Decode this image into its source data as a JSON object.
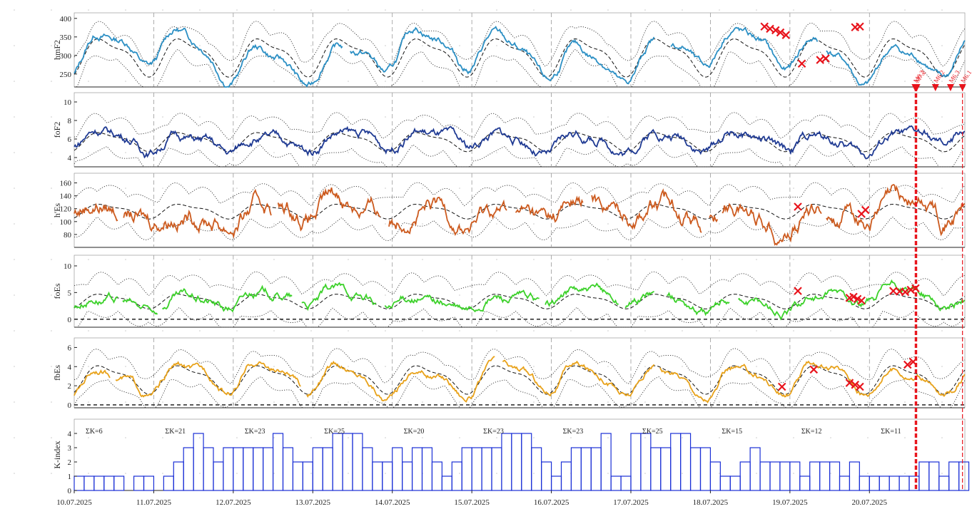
{
  "chart_data": {
    "type": "line",
    "x_dates": [
      "10.07.2025",
      "11.07.2025",
      "12.07.2025",
      "13.07.2025",
      "14.07.2025",
      "15.07.2025",
      "16.07.2025",
      "17.07.2025",
      "18.07.2025",
      "19.07.2025",
      "20.07.2025"
    ],
    "x_range_days": [
      0,
      11.2
    ],
    "colors": {
      "hmF2": "#2b8fc4",
      "foF2": "#1f3a93",
      "hEs": "#cc5a1e",
      "foEs": "#3cd12a",
      "fbEs": "#e8a21a",
      "kindex": "#1a2fd6",
      "event": "#e8141c",
      "median": "#111111",
      "bounds": "#333333"
    },
    "panels": [
      {
        "ylabel": "hmF2",
        "ylim": [
          215,
          415
        ],
        "yticks": [
          250,
          300,
          350,
          400
        ],
        "base": 300,
        "amp": 45,
        "noise": 6,
        "env": 30,
        "spread": 40,
        "gaps": [
          [
            3.38,
            3.47
          ],
          [
            7.3,
            7.5
          ],
          [
            9.35,
            9.45
          ]
        ],
        "x_points": [
          [
            8.68,
            378
          ],
          [
            8.75,
            372
          ],
          [
            8.82,
            368
          ],
          [
            8.88,
            362
          ],
          [
            8.95,
            355
          ],
          [
            9.15,
            278
          ],
          [
            9.38,
            288
          ],
          [
            9.45,
            292
          ],
          [
            9.82,
            376
          ],
          [
            9.88,
            378
          ]
        ]
      },
      {
        "ylabel": "foF2",
        "ylim": [
          3,
          11
        ],
        "yticks": [
          4,
          6,
          8,
          10
        ],
        "base": 5.8,
        "amp": 0.9,
        "noise": 0.3,
        "env": 0.4,
        "spread": 1.8,
        "gaps": [],
        "x_points": []
      },
      {
        "ylabel": "h'Es",
        "ylim": [
          60,
          175
        ],
        "yticks": [
          80,
          100,
          120,
          140,
          160
        ],
        "base": 117,
        "amp": 10,
        "noise": 8,
        "env": 8,
        "spread": 28,
        "gaps": [
          [
            0.55,
            0.62
          ],
          [
            2.48,
            2.56
          ],
          [
            3.85,
            3.95
          ],
          [
            5.45,
            5.55
          ],
          [
            6.4,
            6.5
          ],
          [
            7.9,
            7.98
          ],
          [
            8.1,
            8.15
          ],
          [
            9.4,
            9.45
          ]
        ],
        "x_points": [
          [
            9.1,
            123
          ],
          [
            9.9,
            112
          ],
          [
            9.95,
            118
          ]
        ]
      },
      {
        "ylabel": "foEs",
        "ylim": [
          -1.5,
          12
        ],
        "yticks": [
          0,
          5,
          10
        ],
        "base": 3.5,
        "amp": 1.2,
        "noise": 0.5,
        "env": 0.8,
        "spread": 3.5,
        "gaps": [
          [
            0.55,
            0.6
          ],
          [
            1.05,
            1.1
          ],
          [
            2.75,
            2.85
          ],
          [
            3.8,
            3.9
          ],
          [
            5.85,
            5.92
          ],
          [
            6.85,
            6.92
          ],
          [
            7.3,
            7.45
          ],
          [
            8.25,
            8.35
          ]
        ],
        "x_points": [
          [
            9.1,
            5.3
          ],
          [
            9.75,
            4.0
          ],
          [
            9.8,
            4.2
          ],
          [
            9.85,
            3.8
          ],
          [
            9.9,
            3.5
          ],
          [
            10.3,
            5.3
          ],
          [
            10.38,
            5.2
          ],
          [
            10.45,
            5.1
          ],
          [
            10.52,
            5.5
          ],
          [
            10.58,
            5.8
          ]
        ]
      },
      {
        "ylabel": "fbEs",
        "ylim": [
          -0.3,
          7
        ],
        "yticks": [
          0,
          2,
          4,
          6
        ],
        "base": 2.8,
        "amp": 1.3,
        "noise": 0.2,
        "env": 0.3,
        "spread": 1.5,
        "gaps": [
          [
            0.45,
            0.52
          ],
          [
            2.85,
            2.92
          ],
          [
            5.3,
            5.38
          ],
          [
            7.3,
            7.36
          ]
        ],
        "x_points": [
          [
            8.9,
            1.9
          ],
          [
            9.3,
            3.7
          ],
          [
            9.75,
            2.3
          ],
          [
            9.82,
            2.1
          ],
          [
            9.88,
            1.9
          ],
          [
            10.48,
            4.2
          ],
          [
            10.55,
            4.5
          ]
        ]
      }
    ],
    "kindex": {
      "ylabel": "K-index",
      "ylim": [
        0,
        5
      ],
      "yticks": [
        0,
        1,
        2,
        3,
        4
      ],
      "values": [
        1,
        1,
        1,
        1,
        1,
        0,
        1,
        1,
        0,
        1,
        2,
        3,
        4,
        3,
        2,
        3,
        3,
        3,
        3,
        3,
        4,
        3,
        2,
        2,
        3,
        3,
        4,
        4,
        4,
        3,
        2,
        2,
        3,
        2,
        3,
        3,
        2,
        1,
        2,
        3,
        3,
        3,
        3,
        4,
        4,
        4,
        3,
        2,
        1,
        2,
        3,
        3,
        3,
        4,
        1,
        1,
        4,
        4,
        3,
        3,
        4,
        4,
        3,
        3,
        2,
        1,
        1,
        2,
        3,
        2,
        2,
        2,
        2,
        1,
        2,
        2,
        2,
        1,
        2,
        1,
        1,
        1,
        1,
        1,
        1,
        2,
        2,
        1,
        2,
        2
      ],
      "sums": [
        {
          "day": 0,
          "label": "ΣK=6"
        },
        {
          "day": 1,
          "label": "ΣK=21"
        },
        {
          "day": 2,
          "label": "ΣK=23"
        },
        {
          "day": 3,
          "label": "ΣK=25"
        },
        {
          "day": 4,
          "label": "ΣK=20"
        },
        {
          "day": 5,
          "label": "ΣK=23"
        },
        {
          "day": 6,
          "label": "ΣK=23"
        },
        {
          "day": 7,
          "label": "ΣK=25"
        },
        {
          "day": 8,
          "label": "ΣK=15"
        },
        {
          "day": 9,
          "label": "ΣK=12"
        },
        {
          "day": 10,
          "label": "ΣK=11"
        }
      ]
    },
    "events": [
      {
        "day": 10.575,
        "label": "M6.2"
      },
      {
        "day": 10.595,
        "label": "M7.2"
      },
      {
        "day": 10.83,
        "label": "M6.2"
      },
      {
        "day": 11.02,
        "label": "M6.3"
      },
      {
        "day": 11.17,
        "label": "M6.1"
      }
    ],
    "event_lines": [
      10.575,
      10.585,
      10.595,
      11.17
    ]
  }
}
